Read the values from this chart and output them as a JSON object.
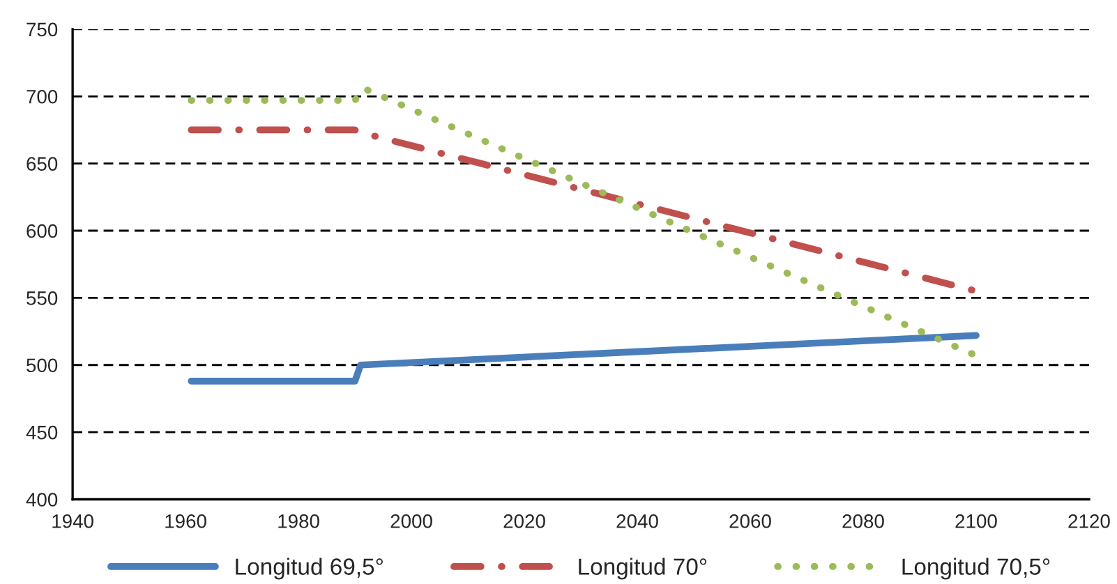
{
  "chart_data": {
    "type": "line",
    "xlim": [
      1940,
      2120
    ],
    "xticks": [
      1940,
      1960,
      1980,
      2000,
      2020,
      2040,
      2060,
      2080,
      2100,
      2120
    ],
    "ylim": [
      400,
      750
    ],
    "yticks": [
      400,
      450,
      500,
      550,
      600,
      650,
      700,
      750
    ],
    "grid": "y",
    "legend": "bottom",
    "marker": "none",
    "series": [
      {
        "name": "Longitud 69,5°",
        "color": "#4a7ebb",
        "line_style": "solid",
        "x": [
          1961,
          1990,
          1991,
          2100
        ],
        "values": [
          488,
          488,
          500,
          522
        ]
      },
      {
        "name": "Longitud 70°",
        "color": "#c0504d",
        "line_style": "dashdot",
        "x": [
          1961,
          1990,
          1992,
          2100
        ],
        "values": [
          675,
          675,
          672,
          555
        ]
      },
      {
        "name": "Longitud 70,5°",
        "color": "#9bbb59",
        "line_style": "dotted",
        "x": [
          1961,
          1990,
          1991.5,
          2100
        ],
        "values": [
          697,
          697,
          706,
          507
        ]
      }
    ]
  }
}
